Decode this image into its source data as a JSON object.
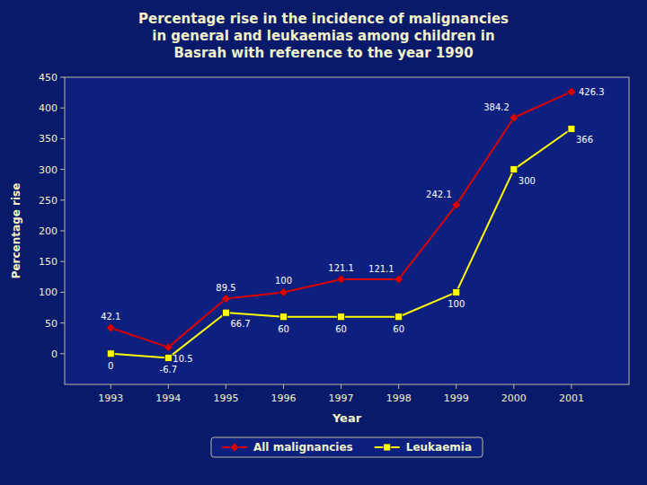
{
  "chart_data": {
    "type": "line",
    "title": "Percentage rise in the incidence of malignancies\nin general and leukaemias among children in\nBasrah with reference to the year 1990",
    "x_label": "Year",
    "y_label": "Percentage rise",
    "x": [
      1993,
      1994,
      1995,
      1996,
      1997,
      1998,
      1999,
      2000,
      2001
    ],
    "series": [
      {
        "name": "All malignancies",
        "color": "#DD0000",
        "marker": "diamond",
        "values": [
          42.1,
          10.5,
          89.5,
          100,
          121.1,
          121.1,
          242.1,
          384.2,
          426.3
        ]
      },
      {
        "name": "Leukaemia",
        "color": "#FFFF00",
        "marker": "square",
        "values": [
          0,
          -6.7,
          66.7,
          60,
          60,
          60,
          100,
          300,
          366
        ]
      }
    ],
    "xlim": [
      1992.2,
      2002.0
    ],
    "xticks": [
      1993,
      1994,
      1995,
      1996,
      1997,
      1998,
      1999,
      2000,
      2001
    ],
    "ylim": [
      -50,
      450
    ],
    "yticks": [
      0,
      50,
      100,
      150,
      200,
      250,
      300,
      350,
      400,
      450
    ],
    "grid": false,
    "legend": "bottom",
    "data_labels": true
  }
}
